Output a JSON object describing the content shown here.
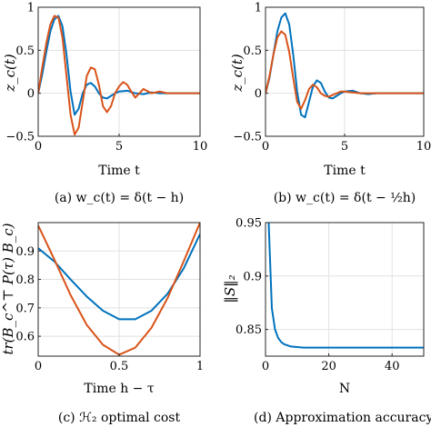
{
  "colors": {
    "series1": "#0072BD",
    "series2": "#D95319",
    "grid": "#e1e1e1",
    "axis": "#262626"
  },
  "chart_data": [
    {
      "type": "line",
      "caption": "(a) w_c(t) = δ(t − h)",
      "xlabel": "Time t",
      "ylabel": "z_c(t)",
      "xlim": [
        0,
        10
      ],
      "ylim": [
        -0.5,
        1
      ],
      "xticks": [
        0,
        5,
        10
      ],
      "xtick_labels": [
        "0",
        "5",
        "10"
      ],
      "yticks": [
        -0.5,
        0,
        0.5,
        1
      ],
      "ytick_labels": [
        "−0.5",
        "0",
        "0.5",
        "1"
      ],
      "grid": true,
      "series": [
        {
          "x": [
            0,
            0.25,
            0.5,
            0.75,
            1.0,
            1.25,
            1.5,
            1.75,
            2.0,
            2.25,
            2.5,
            2.75,
            3.0,
            3.25,
            3.5,
            3.75,
            4.0,
            4.25,
            4.5,
            4.75,
            5.0,
            5.5,
            6.0,
            6.5,
            7.0,
            7.5,
            8.0,
            9.0,
            10.0
          ],
          "y": [
            0,
            0.22,
            0.48,
            0.72,
            0.86,
            0.9,
            0.78,
            0.45,
            0.02,
            -0.25,
            -0.18,
            0.0,
            0.1,
            0.12,
            0.08,
            0.0,
            -0.05,
            -0.06,
            -0.03,
            0.0,
            0.02,
            0.03,
            0.0,
            -0.01,
            0.01,
            0.0,
            0.0,
            0.0,
            0.0
          ]
        },
        {
          "x": [
            0,
            0.25,
            0.5,
            0.75,
            1.0,
            1.25,
            1.5,
            1.75,
            2.0,
            2.25,
            2.5,
            2.75,
            3.0,
            3.25,
            3.5,
            3.75,
            4.0,
            4.25,
            4.5,
            4.75,
            5.0,
            5.25,
            5.5,
            5.75,
            6.0,
            6.5,
            7.0,
            7.5,
            8.0,
            9.0,
            10.0
          ],
          "y": [
            0,
            0.3,
            0.58,
            0.8,
            0.9,
            0.88,
            0.65,
            0.2,
            -0.25,
            -0.48,
            -0.4,
            -0.1,
            0.2,
            0.3,
            0.28,
            0.1,
            -0.15,
            -0.22,
            -0.15,
            0.0,
            0.08,
            0.13,
            0.1,
            0.02,
            -0.05,
            0.05,
            0.0,
            0.02,
            0.0,
            0.0,
            0.0
          ]
        }
      ]
    },
    {
      "type": "line",
      "caption": "(b) w_c(t) = δ(t − ½h)",
      "xlabel": "Time t",
      "ylabel": "z_c(t)",
      "xlim": [
        0,
        10
      ],
      "ylim": [
        -0.5,
        1
      ],
      "xticks": [
        0,
        5,
        10
      ],
      "xtick_labels": [
        "0",
        "5",
        "10"
      ],
      "yticks": [
        -0.5,
        0,
        0.5,
        1
      ],
      "ytick_labels": [
        "−0.5",
        "0",
        "0.5",
        "1"
      ],
      "grid": true,
      "series": [
        {
          "x": [
            0,
            0.25,
            0.5,
            0.75,
            1.0,
            1.25,
            1.5,
            1.75,
            2.0,
            2.25,
            2.5,
            2.75,
            3.0,
            3.25,
            3.5,
            3.75,
            4.0,
            4.25,
            4.5,
            4.75,
            5.0,
            5.5,
            6.0,
            6.5,
            7.0,
            8.0,
            9.0,
            10.0
          ],
          "y": [
            0,
            0.18,
            0.45,
            0.72,
            0.88,
            0.93,
            0.8,
            0.45,
            0.02,
            -0.25,
            -0.28,
            -0.1,
            0.08,
            0.15,
            0.12,
            0.02,
            -0.05,
            -0.06,
            -0.03,
            0.0,
            0.02,
            0.03,
            0.0,
            -0.01,
            0.0,
            0.0,
            0.0,
            0.0
          ]
        },
        {
          "x": [
            0,
            0.25,
            0.5,
            0.75,
            1.0,
            1.25,
            1.5,
            1.75,
            2.0,
            2.25,
            2.5,
            2.75,
            3.0,
            3.25,
            3.5,
            3.75,
            4.0,
            4.25,
            4.5,
            4.75,
            5.0,
            5.5,
            6.0,
            6.5,
            7.0,
            8.0,
            9.0,
            10.0
          ],
          "y": [
            0,
            0.2,
            0.45,
            0.65,
            0.72,
            0.68,
            0.48,
            0.18,
            -0.1,
            -0.18,
            -0.08,
            0.05,
            0.1,
            0.07,
            0.0,
            -0.03,
            -0.04,
            -0.02,
            0.0,
            0.02,
            0.02,
            0.01,
            0.0,
            0.0,
            0.0,
            0.0,
            0.0,
            0.0
          ]
        }
      ]
    },
    {
      "type": "line",
      "caption": "(c) ℋ₂ optimal cost",
      "xlabel": "Time h − τ",
      "ylabel": "tr(B_c^⊤ P(τ) B_c)",
      "xlim": [
        0,
        1
      ],
      "ylim": [
        0.53,
        1.0
      ],
      "xticks": [
        0,
        0.5,
        1
      ],
      "xtick_labels": [
        "0",
        "0.5",
        "1"
      ],
      "yticks": [
        0.6,
        0.7,
        0.8,
        0.9
      ],
      "ytick_labels": [
        "0.6",
        "0.7",
        "0.8",
        "0.9"
      ],
      "grid": true,
      "series": [
        {
          "x": [
            0,
            0.1,
            0.2,
            0.3,
            0.4,
            0.5,
            0.6,
            0.7,
            0.8,
            0.9,
            1.0
          ],
          "y": [
            0.91,
            0.863,
            0.8,
            0.74,
            0.69,
            0.66,
            0.66,
            0.69,
            0.75,
            0.84,
            0.96
          ]
        },
        {
          "x": [
            0,
            0.1,
            0.2,
            0.3,
            0.4,
            0.5,
            0.6,
            0.7,
            0.8,
            0.9,
            1.0
          ],
          "y": [
            0.99,
            0.87,
            0.745,
            0.64,
            0.57,
            0.535,
            0.56,
            0.63,
            0.735,
            0.865,
            1.0
          ]
        }
      ]
    },
    {
      "type": "line",
      "caption": "(d) Approximation accuracy.",
      "xlabel": "N",
      "ylabel": "‖S‖₂",
      "xlim": [
        0,
        50
      ],
      "ylim": [
        0.825,
        0.95
      ],
      "xticks": [
        0,
        20,
        40
      ],
      "xtick_labels": [
        "0",
        "20",
        "40"
      ],
      "yticks": [
        0.85,
        0.9,
        0.95
      ],
      "ytick_labels": [
        "0.85",
        "0.9",
        "0.95"
      ],
      "grid": true,
      "series": [
        {
          "x": [
            1,
            2,
            3,
            4,
            5,
            6,
            7,
            8,
            10,
            12,
            15,
            20,
            25,
            30,
            40,
            50
          ],
          "y": [
            0.95,
            0.87,
            0.85,
            0.842,
            0.838,
            0.836,
            0.835,
            0.834,
            0.8335,
            0.833,
            0.833,
            0.833,
            0.833,
            0.833,
            0.833,
            0.833
          ]
        }
      ]
    }
  ]
}
